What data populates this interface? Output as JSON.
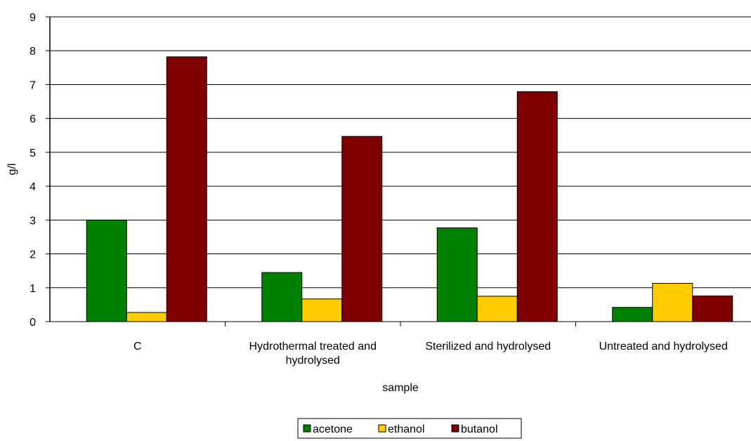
{
  "chart_data": {
    "type": "bar",
    "title": "",
    "xlabel": "sample",
    "ylabel": "g/l",
    "ylim": [
      0,
      9
    ],
    "yticks": [
      0,
      1,
      2,
      3,
      4,
      5,
      6,
      7,
      8,
      9
    ],
    "grid": "horizontal",
    "legend_position": "bottom",
    "categories": [
      [
        "C"
      ],
      [
        "Hydrothermal treated and",
        "hydrolysed"
      ],
      [
        "Sterilized and hydrolysed"
      ],
      [
        "Untreated and hydrolysed"
      ]
    ],
    "series": [
      {
        "name": "acetone",
        "color": "#008000",
        "values": [
          3.0,
          1.45,
          2.77,
          0.42
        ]
      },
      {
        "name": "ethanol",
        "color": "#FFCC00",
        "values": [
          0.27,
          0.67,
          0.75,
          1.13
        ]
      },
      {
        "name": "butanol",
        "color": "#800000",
        "values": [
          7.82,
          5.47,
          6.79,
          0.76
        ]
      }
    ]
  }
}
